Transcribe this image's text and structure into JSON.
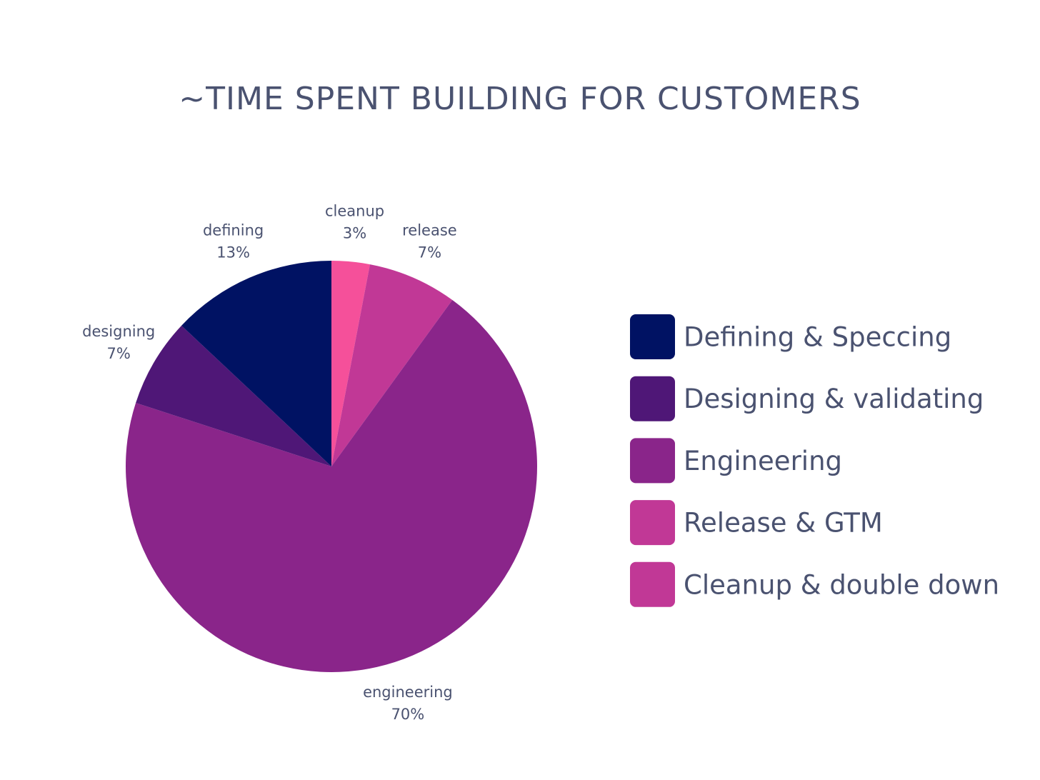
{
  "chart_data": {
    "type": "pie",
    "title": "~TIME SPENT BUILDING FOR CUSTOMERS",
    "slices": [
      {
        "label": "cleanup",
        "value_label": "3%",
        "value": 3,
        "color": "#f5509a",
        "legend": "Cleanup & double down",
        "legend_color": "#c13896"
      },
      {
        "label": "release",
        "value_label": "7%",
        "value": 7,
        "color": "#c13896",
        "legend": "Release & GTM",
        "legend_color": "#c13896"
      },
      {
        "label": "engineering",
        "value_label": "70%",
        "value": 70,
        "color": "#8a258a",
        "legend": "Engineering",
        "legend_color": "#8a258a"
      },
      {
        "label": "designing",
        "value_label": "7%",
        "value": 7,
        "color": "#4f1777",
        "legend": "Designing & validating",
        "legend_color": "#4f1777"
      },
      {
        "label": "defining",
        "value_label": "13%",
        "value": 13,
        "color": "#001263",
        "legend": "Defining & Speccing",
        "legend_color": "#001263"
      }
    ],
    "legend_order": [
      "defining",
      "designing",
      "engineering",
      "release",
      "cleanup"
    ],
    "legend_position": "right"
  }
}
